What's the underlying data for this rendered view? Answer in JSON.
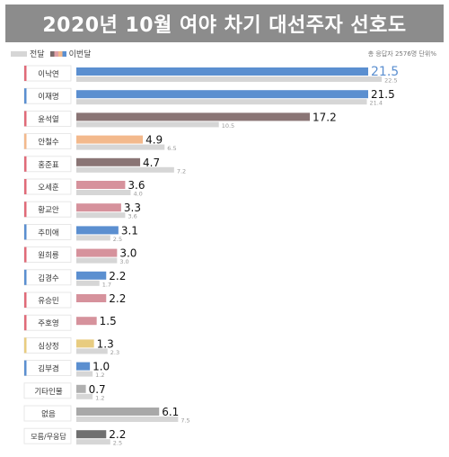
{
  "title": "2020년 10월 여야 차기 대선주자 선호도",
  "legend": {
    "previous": "전달",
    "current": "이번달"
  },
  "note": "총 응답자 2576명   단위%",
  "colors": {
    "previous": "#d6d6d6",
    "ticks": [
      "#e06b79",
      "#5b8fd0",
      "#8a7575",
      "#f3b98c",
      "#7a6a6a",
      "#d88a96",
      "#e0a0a6",
      "#e8cc80",
      "#b0b0b0",
      "#666666"
    ]
  },
  "chart_data": {
    "type": "bar",
    "orientation": "horizontal",
    "title": "2020년 10월 여야 차기 대선주자 선호도",
    "unit": "%",
    "categories": [
      "이낙연",
      "이재명",
      "윤석열",
      "안철수",
      "홍준표",
      "오세훈",
      "황교안",
      "추미애",
      "원희룡",
      "김경수",
      "유승민",
      "주호영",
      "심상정",
      "김부겸",
      "기타인물",
      "없음",
      "모름/무응답"
    ],
    "series": [
      {
        "name": "이번달",
        "values": [
          21.5,
          21.5,
          17.2,
          4.9,
          4.7,
          3.6,
          3.3,
          3.1,
          3.0,
          2.2,
          2.2,
          1.5,
          1.3,
          1.0,
          0.7,
          6.1,
          2.2
        ],
        "colors": [
          "#5b8fd0",
          "#5b8fd0",
          "#8a7575",
          "#f3b98c",
          "#8a7575",
          "#d6929c",
          "#d6929c",
          "#5b8fd0",
          "#d6929c",
          "#5b8fd0",
          "#d6929c",
          "#d6929c",
          "#e8cc80",
          "#5b8fd0",
          "#b0b0b0",
          "#a8a8a8",
          "#707070"
        ]
      },
      {
        "name": "전달",
        "values": [
          22.5,
          21.4,
          10.5,
          6.5,
          7.2,
          4.0,
          3.6,
          2.5,
          3.0,
          1.7,
          null,
          null,
          2.3,
          1.2,
          1.2,
          7.5,
          2.5
        ]
      }
    ],
    "label_bars": [
      "#e06b79",
      "#5b8fd0",
      "#e06b79",
      "#f3b98c",
      "#e06b79",
      "#e06b79",
      "#e06b79",
      "#5b8fd0",
      "#e06b79",
      "#5b8fd0",
      "#e06b79",
      "#e06b79",
      "#e8cc80",
      "#5b8fd0",
      null,
      null,
      null
    ],
    "highlight_color": "#5b8fd0",
    "xlim": [
      0,
      24
    ]
  }
}
